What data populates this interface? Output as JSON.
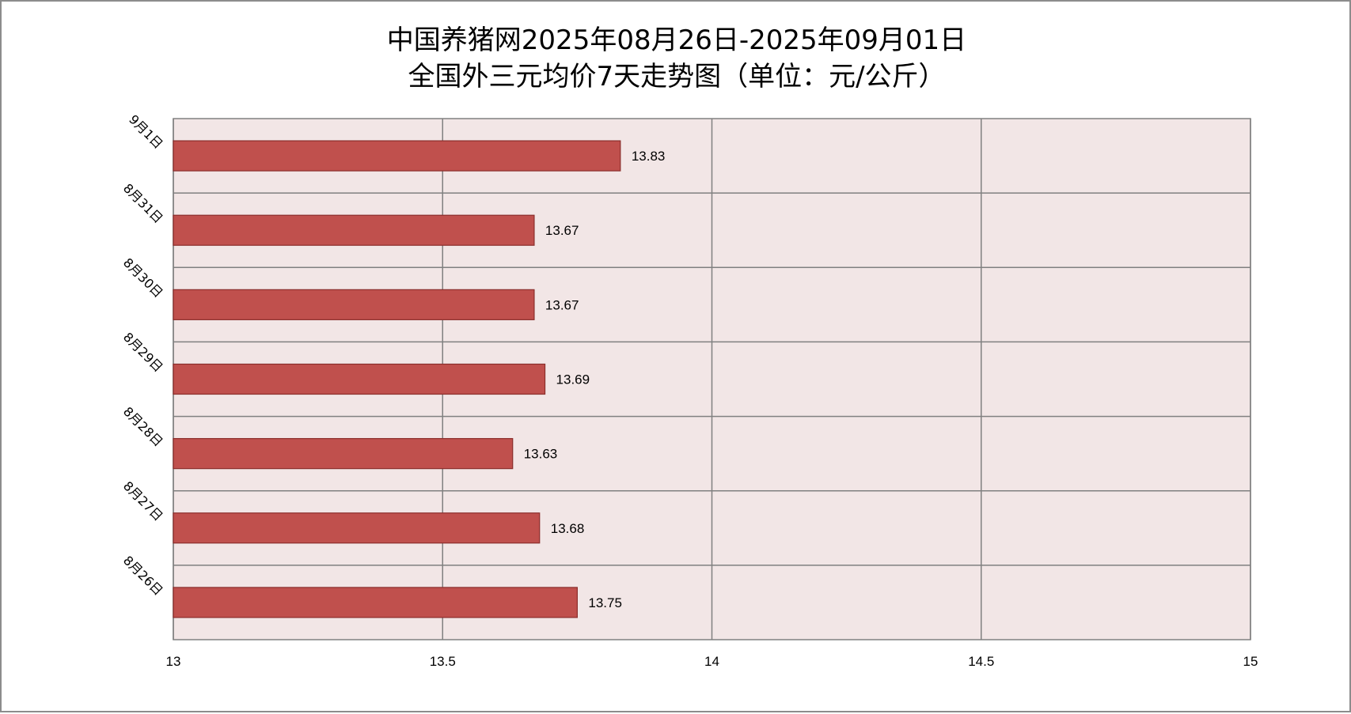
{
  "chart_data": {
    "type": "bar",
    "orientation": "horizontal",
    "title_lines": [
      "中国养猪网2025年08月26日-2025年09月01日",
      "全国外三元均价7天走势图（单位：元/公斤）"
    ],
    "categories": [
      "9月1日",
      "8月31日",
      "8月30日",
      "8月29日",
      "8月28日",
      "8月27日",
      "8月26日"
    ],
    "values": [
      13.83,
      13.67,
      13.67,
      13.69,
      13.63,
      13.68,
      13.75
    ],
    "value_labels": [
      "13.83",
      "13.67",
      "13.67",
      "13.69",
      "13.63",
      "13.68",
      "13.75"
    ],
    "xlim": [
      13,
      15
    ],
    "x_ticks": [
      13,
      13.5,
      14,
      14.5,
      15
    ],
    "x_tick_labels": [
      "13",
      "13.5",
      "14",
      "14.5",
      "15"
    ],
    "grid": true,
    "legend": "none",
    "colors": {
      "bar_fill": "#c0504d",
      "bar_stroke": "#8b2e2c",
      "plot_bg": "#f2e6e6",
      "grid": "#808080"
    }
  }
}
